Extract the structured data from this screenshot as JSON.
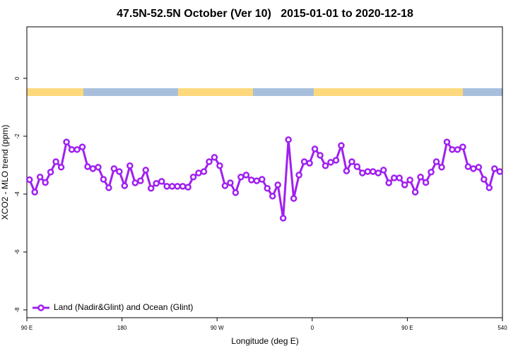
{
  "chart_data": {
    "type": "line",
    "title": "47.5N-52.5N October (Ver 10)   2015-01-01 to 2020-12-18",
    "xlabel": "Longitude (deg E)",
    "ylabel": "XCO2 - MLO trend (ppm)",
    "xlim": [
      90,
      540
    ],
    "xticks": [
      {
        "value": 90,
        "label": "90 E"
      },
      180,
      {
        "value": 270,
        "label": "90 W"
      },
      {
        "value": 360,
        "label": "0"
      },
      {
        "value": 450,
        "label": "90 E"
      },
      540
    ],
    "ylim": [
      -8.27,
      1.78
    ],
    "yticks": [
      0,
      -2,
      -4,
      -6,
      -8
    ],
    "legend": "bottom-left",
    "x": [
      92.5,
      97.5,
      102.5,
      107.5,
      112.5,
      117.5,
      122.5,
      127.5,
      132.5,
      137.5,
      142.5,
      147.5,
      152.5,
      157.5,
      162.5,
      167.5,
      172.5,
      177.5,
      182.5,
      187.5,
      192.5,
      197.5,
      202.5,
      207.5,
      212.5,
      217.5,
      222.5,
      227.5,
      232.5,
      237.5,
      242.5,
      247.5,
      252.5,
      257.5,
      262.5,
      267.5,
      272.5,
      277.5,
      282.5,
      287.5,
      292.5,
      297.5,
      302.5,
      307.5,
      312.5,
      317.5,
      322.5,
      327.5,
      332.5,
      337.5,
      342.5,
      347.5,
      352.5,
      357.5,
      362.5,
      367.5,
      372.5,
      377.5,
      382.5,
      387.5,
      392.5,
      397.5,
      402.5,
      407.5,
      412.5,
      417.5,
      422.5,
      427.5,
      432.5,
      437.5,
      442.5,
      447.5,
      452.5,
      457.5,
      462.5,
      467.5,
      472.5,
      477.5,
      482.5,
      487.5,
      492.5,
      497.5,
      502.5,
      507.5,
      512.5,
      517.5,
      522.5,
      527.5,
      532.5,
      537.5
    ],
    "series": [
      {
        "name": "Land (Nadir&Glint) and Ocean (Glint)",
        "color": "#a020f0",
        "values": [
          -3.5,
          -3.93,
          -3.41,
          -3.6,
          -3.24,
          -2.88,
          -3.07,
          -2.2,
          -2.46,
          -2.46,
          -2.37,
          -3.05,
          -3.12,
          -3.07,
          -3.49,
          -3.78,
          -3.12,
          -3.22,
          -3.71,
          -3.02,
          -3.61,
          -3.54,
          -3.17,
          -3.8,
          -3.63,
          -3.56,
          -3.73,
          -3.73,
          -3.73,
          -3.73,
          -3.76,
          -3.41,
          -3.27,
          -3.22,
          -2.88,
          -2.73,
          -3.02,
          -3.71,
          -3.61,
          -3.95,
          -3.41,
          -3.34,
          -3.51,
          -3.54,
          -3.49,
          -3.8,
          -4.07,
          -3.68,
          -4.83,
          -2.12,
          -4.15,
          -3.34,
          -2.88,
          -2.93,
          -2.44,
          -2.66,
          -3.02,
          -2.9,
          -2.83,
          -2.32,
          -3.2,
          -2.88,
          -3.05,
          -3.27,
          -3.22,
          -3.22,
          -3.27,
          -3.17,
          -3.61,
          -3.44,
          -3.44,
          -3.68,
          -3.51,
          -3.93,
          -3.41,
          -3.6,
          -3.24,
          -2.88,
          -3.07,
          -2.2,
          -2.46,
          -2.46,
          -2.37,
          -3.05,
          -3.12,
          -3.07,
          -3.49,
          -3.78,
          -3.12,
          -3.22
        ]
      }
    ]
  }
}
